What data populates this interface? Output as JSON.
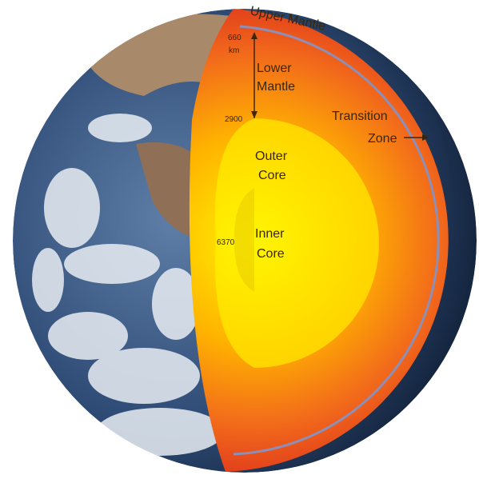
{
  "labels": [
    {
      "name": "upper-mantle",
      "lines": [
        "Upper Mantle"
      ]
    },
    {
      "name": "depth-660",
      "lines": [
        "660",
        "km"
      ]
    },
    {
      "name": "lower-mantle",
      "lines": [
        "Lower",
        "Mantle"
      ]
    },
    {
      "name": "depth-2900",
      "lines": [
        "2900"
      ]
    },
    {
      "name": "transition-zone",
      "lines": [
        "Transition",
        "Zone"
      ]
    },
    {
      "name": "outer-core",
      "lines": [
        "Outer",
        "Core"
      ]
    },
    {
      "name": "inner-core",
      "lines": [
        "Inner",
        "Core"
      ]
    },
    {
      "name": "depth-6370",
      "lines": [
        "6370"
      ]
    }
  ]
}
